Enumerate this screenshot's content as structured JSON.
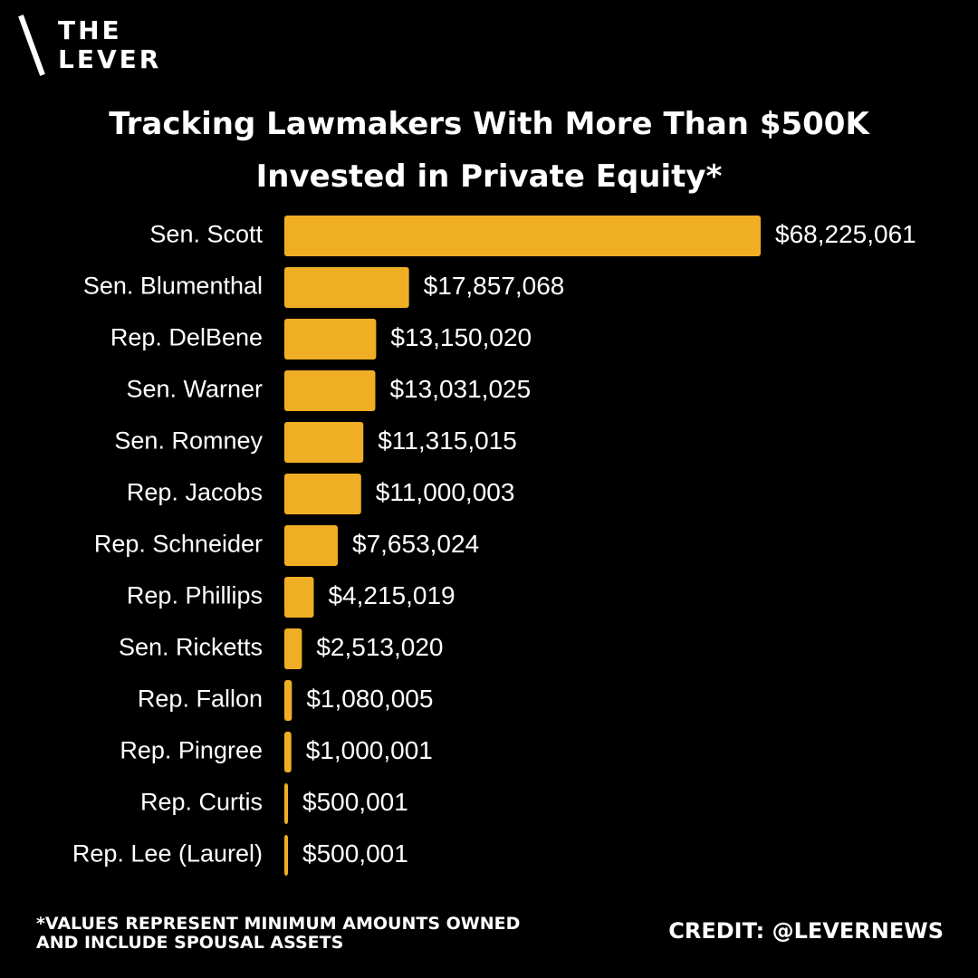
{
  "brand": {
    "line1": "THE",
    "line2": "LEVER"
  },
  "chart_data": {
    "type": "bar",
    "orientation": "horizontal",
    "title_lines": [
      "Tracking Lawmakers With More Than $500K",
      "Invested in Private Equity*"
    ],
    "categories": [
      "Sen. Scott",
      "Sen. Blumenthal",
      "Rep. DelBene",
      "Sen. Warner",
      "Sen. Romney",
      "Rep. Jacobs",
      "Rep. Schneider",
      "Rep. Phillips",
      "Sen. Ricketts",
      "Rep. Fallon",
      "Rep. Pingree",
      "Rep. Curtis",
      "Rep. Lee (Laurel)"
    ],
    "values": [
      68225061,
      17857068,
      13150020,
      13031025,
      11315015,
      11000003,
      7653024,
      4215019,
      2513020,
      1080005,
      1000001,
      500001,
      500001
    ],
    "value_labels": [
      "$68,225,061",
      "$17,857,068",
      "$13,150,020",
      "$13,031,025",
      "$11,315,015",
      "$11,000,003",
      "$7,653,024",
      "$4,215,019",
      "$2,513,020",
      "$1,080,005",
      "$1,000,001",
      "$500,001",
      "$500,001"
    ],
    "bar_color": "#f0ae24",
    "grid": false
  },
  "footnote": {
    "line1": "*VALUES REPRESENT MINIMUM AMOUNTS OWNED",
    "line2": "AND INCLUDE SPOUSAL ASSETS"
  },
  "credit": "CREDIT: @LEVERNEWS",
  "colors": {
    "background": "#000000",
    "text": "#ffffff",
    "accent": "#f0ae24"
  }
}
